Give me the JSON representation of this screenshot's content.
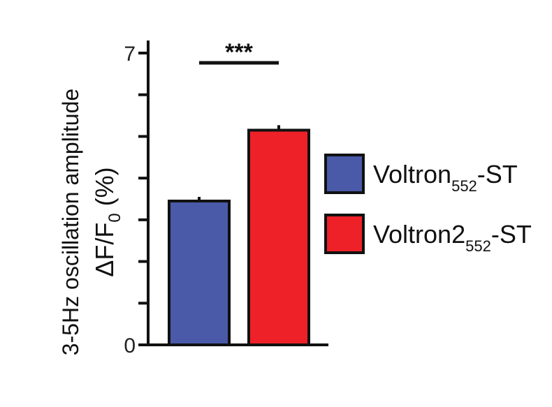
{
  "chart_data": {
    "type": "bar",
    "ylabel_line1": "3-5Hz oscillation amplitude",
    "ylabel_line2_main": "ΔF/F",
    "ylabel_line2_sub": "0",
    "ylabel_line2_tail": " (%)",
    "ylim": [
      0,
      7
    ],
    "ytick_labels": [
      {
        "value": 7,
        "label": "7"
      },
      {
        "value": 0,
        "label": "0"
      }
    ],
    "yticks_minor": [
      1,
      2,
      3,
      4,
      5,
      6
    ],
    "grid": false,
    "legend_position": "right",
    "series": [
      {
        "name_main": "Voltron",
        "name_sub": "552",
        "name_tail": "-ST",
        "value": 3.45,
        "error": 0.1,
        "color": "#4a5aa8"
      },
      {
        "name_main": "Voltron2",
        "name_sub": "552",
        "name_tail": "-ST",
        "value": 5.15,
        "error": 0.12,
        "color": "#ee2128"
      }
    ],
    "significance": {
      "label": "***",
      "from": 0,
      "to": 1
    }
  }
}
